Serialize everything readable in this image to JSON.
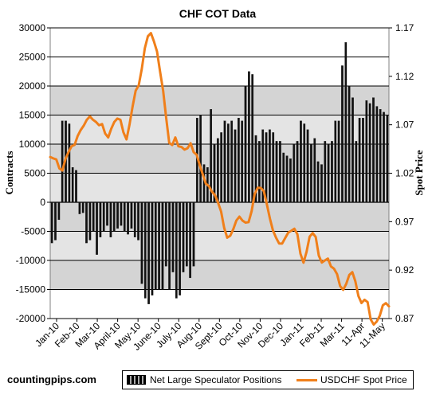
{
  "chart_data": {
    "type": "bar",
    "title": "CHF COT Data",
    "ylabel": "Contracts",
    "y2label": "Spot Price",
    "ylim": [
      -20000,
      30000
    ],
    "y2lim": [
      0.87,
      1.17
    ],
    "yticks": [
      "30000",
      "25000",
      "20000",
      "15000",
      "10000",
      "5000",
      "0",
      "-5000",
      "-10000",
      "-15000",
      "-20000"
    ],
    "y2ticks": [
      "1.17",
      "1.12",
      "1.07",
      "1.02",
      "0.97",
      "0.92",
      "0.87"
    ],
    "xticks": [
      "Jan-10",
      "Feb-10",
      "Mar-10",
      "April-10",
      "May-10",
      "June-10",
      "July-10",
      "Aug-10",
      "Sept-10",
      "Oct-10",
      "Nov-10",
      "Dec-10",
      "Jan-11",
      "Feb-11",
      "Mar-11",
      "11-Apr",
      "11-May"
    ],
    "grid": true,
    "legend_position": "bottom-right",
    "series": [
      {
        "name": "Net Large Speculator Positions",
        "kind": "bar",
        "values": [
          -7000,
          -6500,
          -3000,
          14000,
          14000,
          13500,
          6000,
          5500,
          -2000,
          -1800,
          -7000,
          -6500,
          -5000,
          -9000,
          -6000,
          -5000,
          -4000,
          -6000,
          -5000,
          -4500,
          -4000,
          -5000,
          -5500,
          -4500,
          -6000,
          -6500,
          -14000,
          -16500,
          -17500,
          -16000,
          -15000,
          -15000,
          -15000,
          -11000,
          -15000,
          -12000,
          -16500,
          -16000,
          -12000,
          -11000,
          -13000,
          -11000,
          14500,
          15000,
          6500,
          6000,
          16000,
          10000,
          11000,
          12000,
          14000,
          13500,
          14000,
          12500,
          14500,
          14000,
          20000,
          22500,
          22000,
          11500,
          10500,
          12500,
          12000,
          12500,
          12000,
          10500,
          10500,
          8500,
          8000,
          7500,
          10000,
          10500,
          14000,
          13500,
          12500,
          10000,
          11000,
          7000,
          6500,
          10500,
          10000,
          10500,
          14000,
          14000,
          23500,
          27500,
          20000,
          18000,
          10500,
          14500,
          14500,
          17500,
          17000,
          18000,
          16500,
          16000,
          15500,
          15000
        ]
      },
      {
        "name": "USDCHF Spot Price",
        "kind": "line",
        "values": [
          1.0367,
          1.0353,
          1.0342,
          1.0249,
          1.0228,
          1.0348,
          1.0418,
          1.0478,
          1.0493,
          1.0585,
          1.0646,
          1.0692,
          1.0752,
          1.0786,
          1.0752,
          1.0729,
          1.0695,
          1.0707,
          1.061,
          1.0569,
          1.0659,
          1.0729,
          1.0764,
          1.0752,
          1.0621,
          1.0549,
          1.0704,
          1.0889,
          1.1052,
          1.1107,
          1.1275,
          1.1489,
          1.1613,
          1.1646,
          1.1559,
          1.1456,
          1.1248,
          1.1052,
          1.0771,
          1.0513,
          1.0491,
          1.0569,
          1.0478,
          1.0471,
          1.0443,
          1.0458,
          1.051,
          1.0418,
          1.039,
          1.0283,
          1.0187,
          1.0092,
          1.0067,
          1.001,
          0.9973,
          0.9896,
          0.9804,
          0.9637,
          0.9535,
          0.9555,
          0.9624,
          0.9712,
          0.9752,
          0.9711,
          0.969,
          0.9695,
          0.9808,
          0.9987,
          1.005,
          1.0048,
          1.0015,
          0.9878,
          0.9731,
          0.9608,
          0.9535,
          0.9475,
          0.9474,
          0.9531,
          0.9587,
          0.9606,
          0.9627,
          0.9569,
          0.9369,
          0.9277,
          0.9389,
          0.9545,
          0.9582,
          0.9542,
          0.9351,
          0.9278,
          0.93,
          0.9319,
          0.9238,
          0.9214,
          0.9158,
          0.9035,
          0.8996,
          0.9058,
          0.915,
          0.9179,
          0.9083,
          0.8932,
          0.886,
          0.8894,
          0.887,
          0.8692,
          0.8638,
          0.867,
          0.8729,
          0.8837,
          0.8859,
          0.8826
        ]
      }
    ]
  },
  "credit": "countingpips.com"
}
